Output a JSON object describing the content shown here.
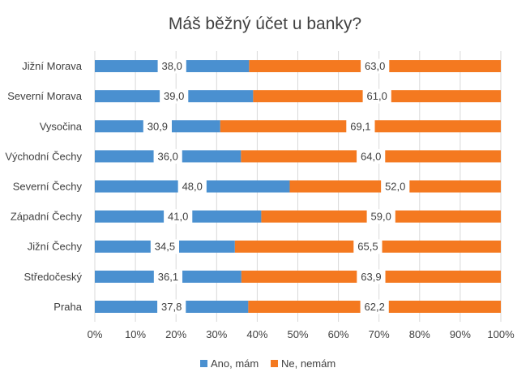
{
  "chart_data": {
    "type": "bar",
    "orientation": "horizontal",
    "stacked": "percent",
    "title": "Máš běžný účet u banky?",
    "categories": [
      "Jižní Morava",
      "Severní Morava",
      "Vysočina",
      "Východní Čechy",
      "Severní Čechy",
      "Západní Čechy",
      "Jižní Čechy",
      "Středočeský",
      "Praha"
    ],
    "series": [
      {
        "name": "Ano, mám",
        "color": "#4a90d0",
        "values": [
          38.0,
          39.0,
          30.9,
          36.0,
          48.0,
          41.0,
          34.5,
          36.1,
          37.8
        ],
        "labels": [
          "38,0",
          "39,0",
          "30,9",
          "36,0",
          "48,0",
          "41,0",
          "34,5",
          "36,1",
          "37,8"
        ]
      },
      {
        "name": "Ne, nemám",
        "color": "#f47920",
        "values": [
          63.0,
          61.0,
          69.1,
          64.0,
          52.0,
          59.0,
          65.5,
          63.9,
          62.2
        ],
        "labels": [
          "63,0",
          "61,0",
          "69,1",
          "64,0",
          "52,0",
          "59,0",
          "65,5",
          "63,9",
          "62,2"
        ]
      }
    ],
    "xlim": [
      0,
      100
    ],
    "x_ticks": [
      "0%",
      "10%",
      "20%",
      "30%",
      "40%",
      "50%",
      "60%",
      "70%",
      "80%",
      "90%",
      "100%"
    ],
    "grid": true,
    "legend_position": "bottom"
  }
}
